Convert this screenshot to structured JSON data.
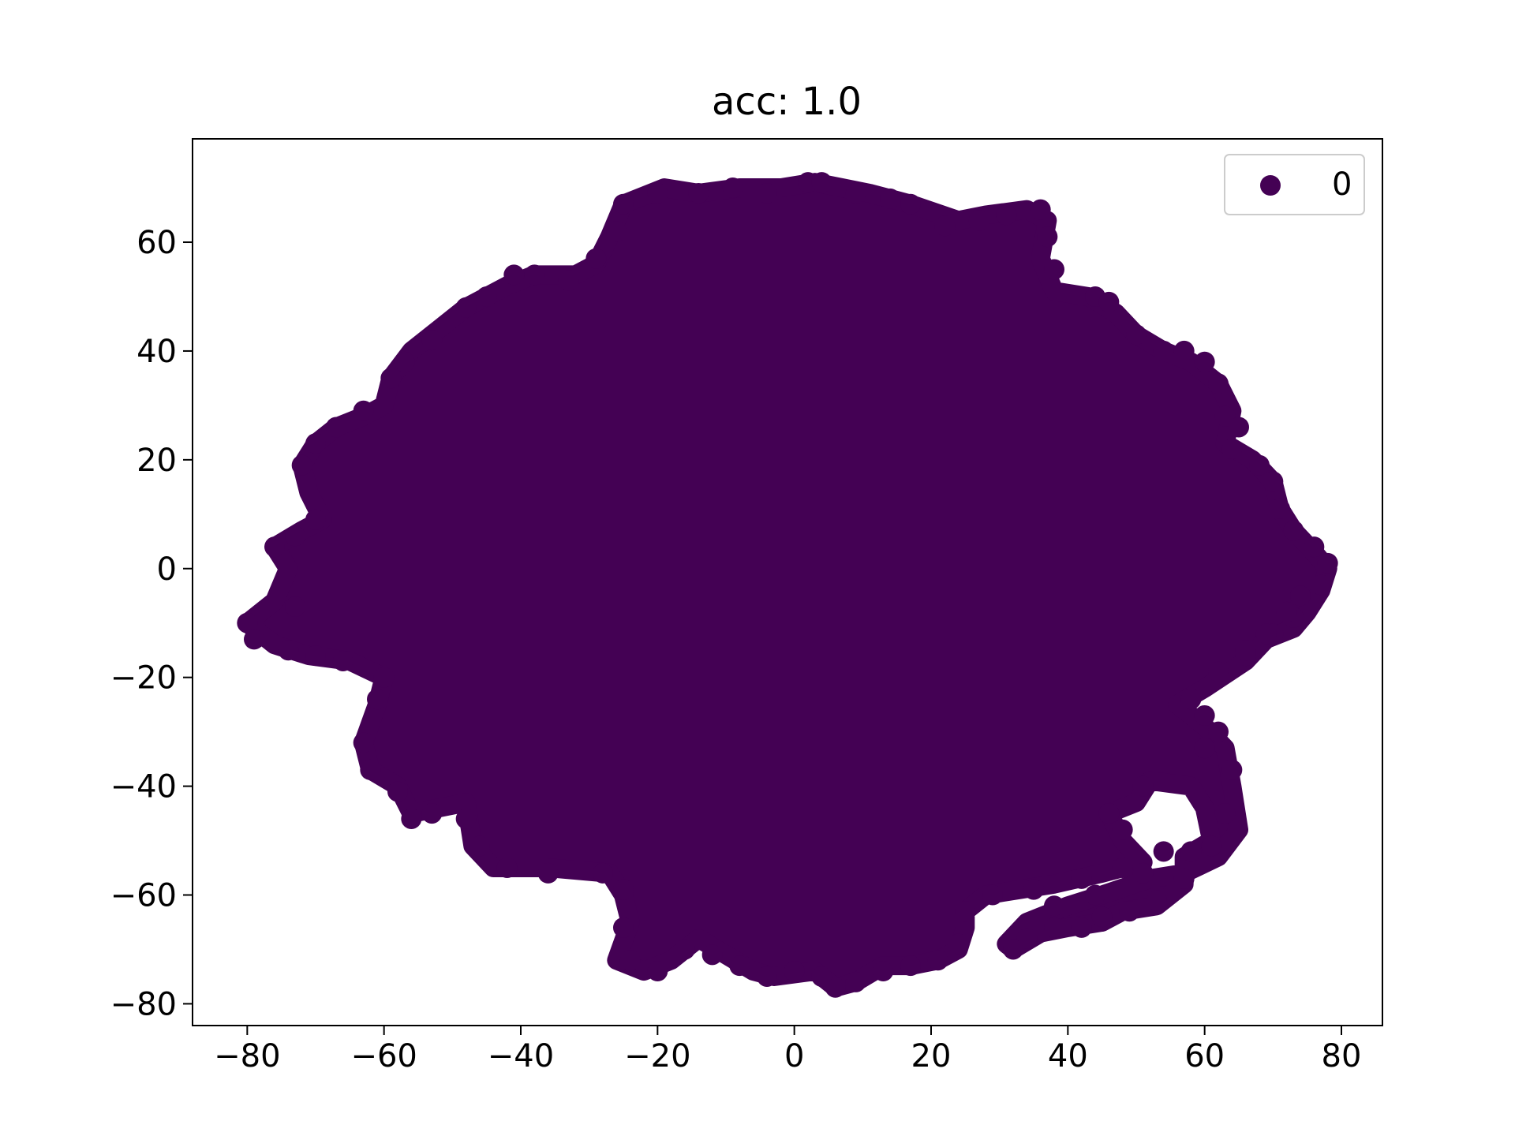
{
  "chart_data": {
    "type": "scatter",
    "title": "acc: 1.0",
    "xlabel": "",
    "ylabel": "",
    "xlim": [
      -88,
      86
    ],
    "ylim": [
      -84,
      79
    ],
    "x_ticks": [
      -80,
      -60,
      -40,
      -20,
      0,
      20,
      40,
      60,
      80
    ],
    "y_ticks": [
      -80,
      -60,
      -40,
      -20,
      0,
      20,
      40,
      60
    ],
    "x_tick_labels": [
      "−80",
      "−60",
      "−40",
      "−20",
      "0",
      "20",
      "40",
      "60",
      "80"
    ],
    "y_tick_labels": [
      "−80",
      "−60",
      "−40",
      "−20",
      "0",
      "20",
      "40",
      "60"
    ],
    "grid": false,
    "legend": {
      "position": "top-right",
      "entries": [
        {
          "label": "0",
          "color": "#440154"
        }
      ]
    },
    "series": [
      {
        "name": "0",
        "color": "#440154",
        "marker": "circle",
        "region_outline": [
          [
            -80,
            -10
          ],
          [
            -76,
            -14
          ],
          [
            -71,
            -16
          ],
          [
            -65,
            -17
          ],
          [
            -60,
            -20
          ],
          [
            -61,
            -25
          ],
          [
            -63,
            -32
          ],
          [
            -62,
            -37
          ],
          [
            -58,
            -40
          ],
          [
            -56,
            -45
          ],
          [
            -48,
            -43
          ],
          [
            -47,
            -51
          ],
          [
            -44,
            -55
          ],
          [
            -36,
            -55
          ],
          [
            -27,
            -56
          ],
          [
            -25,
            -60
          ],
          [
            -24,
            -65
          ],
          [
            -26,
            -72
          ],
          [
            -22,
            -74
          ],
          [
            -18,
            -72
          ],
          [
            -14,
            -68
          ],
          [
            -10,
            -71
          ],
          [
            -6,
            -74
          ],
          [
            -3,
            -75
          ],
          [
            3,
            -74
          ],
          [
            6,
            -77
          ],
          [
            9,
            -76
          ],
          [
            13,
            -73
          ],
          [
            17,
            -73
          ],
          [
            21,
            -72
          ],
          [
            24,
            -70
          ],
          [
            25,
            -66
          ],
          [
            25,
            -63
          ],
          [
            28,
            -60
          ],
          [
            33,
            -59
          ],
          [
            38,
            -58
          ],
          [
            45,
            -56
          ],
          [
            51,
            -54
          ],
          [
            48,
            -50
          ],
          [
            46,
            -45
          ],
          [
            50,
            -43
          ],
          [
            52,
            -39
          ],
          [
            58,
            -40
          ],
          [
            60,
            -44
          ],
          [
            61,
            -50
          ],
          [
            57,
            -53
          ],
          [
            57,
            -58
          ],
          [
            53,
            -62
          ],
          [
            48,
            -63
          ],
          [
            45,
            -65
          ],
          [
            40,
            -66
          ],
          [
            36,
            -67
          ],
          [
            32,
            -70
          ],
          [
            31,
            -69
          ],
          [
            34,
            -65
          ],
          [
            40,
            -62
          ],
          [
            45,
            -60
          ],
          [
            52,
            -57
          ],
          [
            57,
            -56
          ],
          [
            62,
            -53
          ],
          [
            65,
            -48
          ],
          [
            64,
            -40
          ],
          [
            63,
            -33
          ],
          [
            60,
            -29
          ],
          [
            56,
            -25
          ],
          [
            60,
            -22
          ],
          [
            66,
            -17
          ],
          [
            69,
            -13
          ],
          [
            73,
            -11
          ],
          [
            75,
            -8
          ],
          [
            77,
            -4
          ],
          [
            78,
            0
          ],
          [
            76,
            3
          ],
          [
            73,
            7
          ],
          [
            71,
            11
          ],
          [
            70,
            16
          ],
          [
            67,
            20
          ],
          [
            63,
            23
          ],
          [
            64,
            29
          ],
          [
            62,
            34
          ],
          [
            58,
            38
          ],
          [
            54,
            40
          ],
          [
            50,
            43
          ],
          [
            47,
            47
          ],
          [
            43,
            50
          ],
          [
            38,
            51
          ],
          [
            36,
            57
          ],
          [
            37,
            64
          ],
          [
            34,
            66
          ],
          [
            28,
            65
          ],
          [
            24,
            64
          ],
          [
            17,
            67
          ],
          [
            11,
            69
          ],
          [
            7,
            70
          ],
          [
            3,
            71
          ],
          [
            -2,
            70
          ],
          [
            -8,
            70
          ],
          [
            -14,
            69
          ],
          [
            -19,
            70
          ],
          [
            -25,
            67
          ],
          [
            -27,
            61
          ],
          [
            -29,
            56
          ],
          [
            -32,
            54
          ],
          [
            -38,
            54
          ],
          [
            -42,
            52
          ],
          [
            -48,
            48
          ],
          [
            -52,
            44
          ],
          [
            -56,
            40
          ],
          [
            -59,
            35
          ],
          [
            -60,
            30
          ],
          [
            -63,
            28
          ],
          [
            -67,
            26
          ],
          [
            -70,
            23
          ],
          [
            -72,
            19
          ],
          [
            -71,
            14
          ],
          [
            -69,
            9
          ],
          [
            -72,
            7
          ],
          [
            -76,
            4
          ],
          [
            -74,
            0
          ],
          [
            -76,
            -6
          ],
          [
            -80,
            -10
          ]
        ],
        "edge_points": [
          [
            -80,
            -10
          ],
          [
            -79,
            -13
          ],
          [
            -74,
            -15
          ],
          [
            -70,
            -16
          ],
          [
            -66,
            -17
          ],
          [
            -73,
            -7
          ],
          [
            -76,
            4
          ],
          [
            -73,
            6
          ],
          [
            -70,
            9
          ],
          [
            -72,
            19
          ],
          [
            -70,
            23
          ],
          [
            -67,
            26
          ],
          [
            -63,
            29
          ],
          [
            -59,
            35
          ],
          [
            -57,
            38
          ],
          [
            -53,
            42
          ],
          [
            -48,
            48
          ],
          [
            -45,
            50
          ],
          [
            -41,
            54
          ],
          [
            -38,
            54
          ],
          [
            -33,
            53
          ],
          [
            -29,
            57
          ],
          [
            -26,
            62
          ],
          [
            -25,
            67
          ],
          [
            -20,
            69
          ],
          [
            -14,
            69
          ],
          [
            -9,
            70
          ],
          [
            -4,
            69
          ],
          [
            2,
            71
          ],
          [
            4,
            71
          ],
          [
            9,
            69
          ],
          [
            14,
            68
          ],
          [
            17,
            67
          ],
          [
            22,
            63
          ],
          [
            27,
            64
          ],
          [
            31,
            65
          ],
          [
            36,
            66
          ],
          [
            37,
            61
          ],
          [
            38,
            55
          ],
          [
            44,
            50
          ],
          [
            46,
            49
          ],
          [
            50,
            43
          ],
          [
            54,
            40
          ],
          [
            57,
            40
          ],
          [
            60,
            38
          ],
          [
            62,
            34
          ],
          [
            63,
            28
          ],
          [
            64,
            22
          ],
          [
            68,
            19
          ],
          [
            70,
            16
          ],
          [
            71,
            11
          ],
          [
            73,
            7
          ],
          [
            76,
            4
          ],
          [
            78,
            1
          ],
          [
            77,
            -3
          ],
          [
            73,
            -9
          ],
          [
            70,
            -12
          ],
          [
            66,
            -16
          ],
          [
            62,
            -19
          ],
          [
            58,
            -24
          ],
          [
            60,
            -27
          ],
          [
            62,
            -30
          ],
          [
            64,
            -37
          ],
          [
            63,
            -45
          ],
          [
            61,
            -51
          ],
          [
            58,
            -52
          ],
          [
            57,
            -57
          ],
          [
            53,
            -61
          ],
          [
            49,
            -63
          ],
          [
            45,
            -64
          ],
          [
            42,
            -66
          ],
          [
            38,
            -66
          ],
          [
            34,
            -68
          ],
          [
            32,
            -70
          ],
          [
            38,
            -62
          ],
          [
            44,
            -60
          ],
          [
            51,
            -56
          ],
          [
            54,
            -52
          ],
          [
            48,
            -48
          ],
          [
            46,
            -45
          ],
          [
            51,
            -40
          ],
          [
            21,
            -72
          ],
          [
            17,
            -73
          ],
          [
            13,
            -74
          ],
          [
            9,
            -76
          ],
          [
            6,
            -77
          ],
          [
            4,
            -75
          ],
          [
            0,
            -74
          ],
          [
            -4,
            -75
          ],
          [
            -8,
            -73
          ],
          [
            -12,
            -71
          ],
          [
            -16,
            -70
          ],
          [
            -20,
            -74
          ],
          [
            -24,
            -72
          ],
          [
            -25,
            -66
          ],
          [
            -25,
            -59
          ],
          [
            -28,
            -56
          ],
          [
            -36,
            -56
          ],
          [
            -42,
            -55
          ],
          [
            -46,
            -51
          ],
          [
            -48,
            -46
          ],
          [
            -53,
            -45
          ],
          [
            -56,
            -46
          ],
          [
            -58,
            -41
          ],
          [
            -62,
            -37
          ],
          [
            -63,
            -32
          ],
          [
            -61,
            -24
          ],
          [
            -60,
            -20
          ],
          [
            24,
            -69
          ],
          [
            25,
            -63
          ],
          [
            29,
            -60
          ],
          [
            35,
            -59
          ],
          [
            42,
            -57
          ],
          [
            48,
            -55
          ],
          [
            60,
            -33
          ],
          [
            66,
            -15
          ],
          [
            69,
            -12
          ],
          [
            72,
            -8
          ],
          [
            74,
            -5
          ],
          [
            65,
            26
          ]
        ]
      }
    ]
  }
}
